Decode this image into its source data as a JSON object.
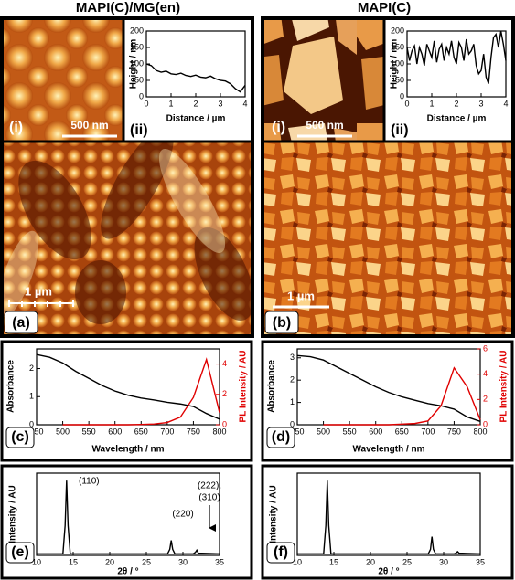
{
  "titles": [
    "MAPI(C)/MG(en)",
    "MAPI(C)"
  ],
  "afm": [
    {
      "label": "(a)",
      "inset_label": "(i)",
      "inset_scale": "500 nm",
      "scale": "1 µm"
    },
    {
      "label": "(b)",
      "inset_label": "(i)",
      "inset_scale": "500 nm",
      "scale": "1 µm"
    }
  ],
  "chart_data": [
    {
      "type": "line",
      "panel": "(ii)",
      "xlabel": "Distance / µm",
      "ylabel": "Height / nm",
      "x": [
        0,
        0.2,
        0.4,
        0.6,
        0.8,
        1.0,
        1.2,
        1.4,
        1.6,
        1.8,
        2.0,
        2.2,
        2.4,
        2.6,
        2.8,
        3.0,
        3.2,
        3.4,
        3.6,
        3.8,
        4.0
      ],
      "values": [
        100,
        95,
        80,
        75,
        78,
        70,
        68,
        72,
        65,
        62,
        66,
        60,
        58,
        63,
        55,
        50,
        48,
        40,
        25,
        15,
        35
      ],
      "color": "#000000",
      "xlim": [
        0,
        4
      ],
      "ylim": [
        0,
        200
      ],
      "xticks": [
        0,
        1,
        2,
        3,
        4
      ],
      "yticks": [
        0,
        50,
        100,
        150,
        200
      ]
    },
    {
      "type": "line",
      "panel": "(ii)",
      "xlabel": "Distance / µm",
      "ylabel": "Height / nm",
      "x": [
        0,
        0.1,
        0.2,
        0.3,
        0.4,
        0.5,
        0.6,
        0.7,
        0.8,
        0.9,
        1.0,
        1.1,
        1.2,
        1.3,
        1.4,
        1.5,
        1.6,
        1.7,
        1.8,
        1.9,
        2.0,
        2.1,
        2.2,
        2.3,
        2.4,
        2.5,
        2.6,
        2.7,
        2.8,
        2.9,
        3.0,
        3.1,
        3.2,
        3.3,
        3.4,
        3.5,
        3.6,
        3.7,
        3.8,
        3.9,
        4.0
      ],
      "values": [
        150,
        110,
        140,
        155,
        100,
        150,
        130,
        95,
        160,
        140,
        120,
        170,
        105,
        145,
        160,
        110,
        150,
        130,
        170,
        120,
        100,
        165,
        150,
        110,
        175,
        130,
        140,
        160,
        95,
        70,
        80,
        130,
        60,
        40,
        120,
        180,
        190,
        150,
        200,
        160,
        110
      ],
      "color": "#000000",
      "xlim": [
        0,
        4
      ],
      "ylim": [
        0,
        200
      ],
      "xticks": [
        0,
        1,
        2,
        3,
        4
      ],
      "yticks": [
        0,
        50,
        100,
        150,
        200
      ]
    },
    {
      "type": "line",
      "panel": "(c)",
      "xlabel": "Wavelength / nm",
      "ylabel": "Absorbance",
      "y2label": "PL Intensity / AU",
      "x": [
        450,
        475,
        500,
        525,
        550,
        575,
        600,
        625,
        650,
        675,
        700,
        725,
        750,
        775,
        800
      ],
      "series": [
        {
          "color": "#000000",
          "values": [
            2.5,
            2.4,
            2.2,
            1.9,
            1.65,
            1.4,
            1.2,
            1.05,
            0.95,
            0.88,
            0.8,
            0.74,
            0.65,
            0.4,
            0.2
          ]
        },
        {
          "color": "#e00000",
          "axis": "y2",
          "values": [
            null,
            null,
            0,
            0,
            0,
            0,
            0,
            0,
            0.02,
            0.05,
            0.15,
            0.5,
            1.8,
            4.3,
            0.8
          ]
        }
      ],
      "xlim": [
        450,
        800
      ],
      "ylim": [
        0,
        2.7
      ],
      "y2lim": [
        0,
        5
      ],
      "xticks": [
        450,
        500,
        550,
        600,
        650,
        700,
        750,
        800
      ],
      "yticks": [
        0,
        1,
        2
      ],
      "y2ticks": [
        0,
        2,
        4
      ]
    },
    {
      "type": "line",
      "panel": "(d)",
      "xlabel": "Wavelength / nm",
      "ylabel": "Absorbance",
      "y2label": "PL Intensity / AU",
      "x": [
        450,
        475,
        500,
        525,
        550,
        575,
        600,
        625,
        650,
        675,
        700,
        725,
        750,
        775,
        800
      ],
      "series": [
        {
          "color": "#000000",
          "values": [
            3.1,
            3.05,
            2.9,
            2.6,
            2.3,
            2.0,
            1.7,
            1.45,
            1.25,
            1.1,
            0.95,
            0.85,
            0.7,
            0.35,
            0.15
          ]
        },
        {
          "color": "#e00000",
          "axis": "y2",
          "values": [
            null,
            null,
            0,
            0,
            0,
            0,
            0,
            0,
            0.05,
            0.1,
            0.3,
            1.5,
            4.5,
            3.0,
            0.4
          ]
        }
      ],
      "xlim": [
        450,
        800
      ],
      "ylim": [
        0,
        3.4
      ],
      "y2lim": [
        0,
        6
      ],
      "xticks": [
        450,
        500,
        550,
        600,
        650,
        700,
        750,
        800
      ],
      "yticks": [
        0,
        1,
        2,
        3
      ],
      "y2ticks": [
        0,
        2,
        4,
        6
      ]
    },
    {
      "type": "line",
      "panel": "(e)",
      "xlabel": "2θ / °",
      "ylabel": "Intensity / AU",
      "annotations": [
        "(110)",
        "(220)",
        "(222),",
        "(310)"
      ],
      "x": [
        10,
        13.6,
        13.9,
        14.1,
        14.3,
        14.6,
        20,
        27.9,
        28.2,
        28.4,
        28.6,
        28.9,
        31.4,
        31.7,
        31.9,
        32.1,
        35
      ],
      "values": [
        2,
        2,
        40,
        100,
        40,
        2,
        2,
        2,
        8,
        20,
        8,
        2,
        2,
        4,
        7,
        3,
        2
      ],
      "color": "#000000",
      "xlim": [
        10,
        35
      ],
      "ylim": [
        0,
        110
      ],
      "xticks": [
        10,
        15,
        20,
        25,
        30,
        35
      ]
    },
    {
      "type": "line",
      "panel": "(f)",
      "xlabel": "2θ / °",
      "ylabel": "Intensity / AU",
      "x": [
        10,
        13.6,
        13.9,
        14.1,
        14.3,
        14.6,
        20,
        27.9,
        28.2,
        28.4,
        28.6,
        28.9,
        31.4,
        31.7,
        31.9,
        32.1,
        35
      ],
      "values": [
        2,
        2,
        40,
        100,
        40,
        2,
        2,
        2,
        8,
        25,
        8,
        2,
        2,
        3,
        5,
        3,
        2
      ],
      "color": "#000000",
      "xlim": [
        10,
        35
      ],
      "ylim": [
        0,
        110
      ],
      "xticks": [
        10,
        15,
        20,
        25,
        30,
        35
      ]
    }
  ]
}
